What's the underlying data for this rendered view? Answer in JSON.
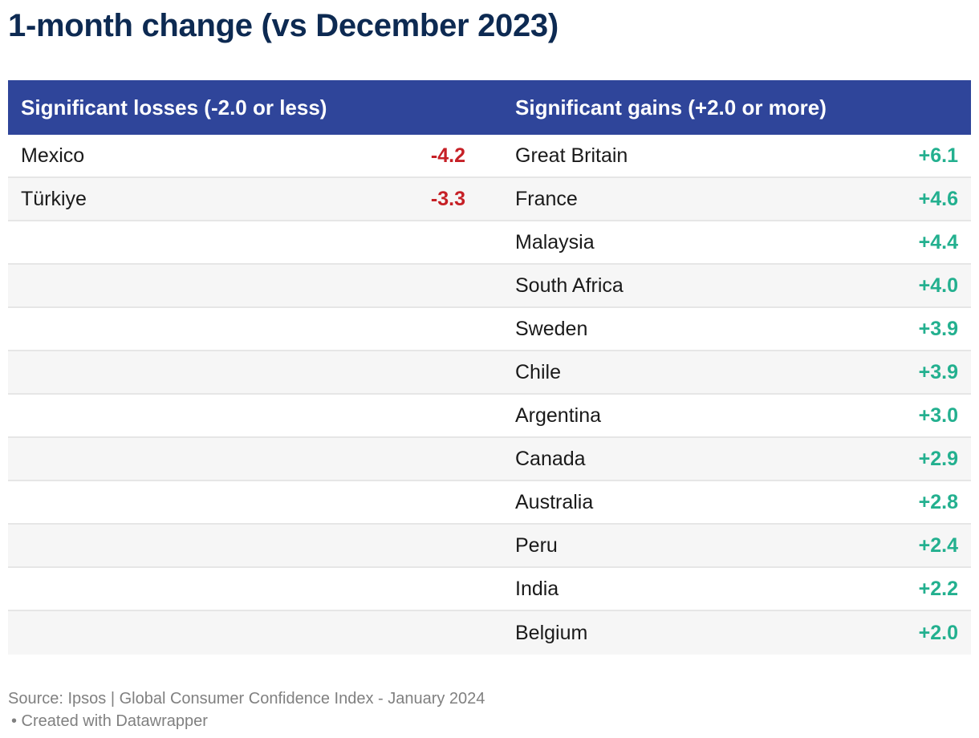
{
  "title": "1-month change (vs December 2023)",
  "chart_data": {
    "type": "table",
    "columns": [
      "Significant losses (-2.0 or less)",
      "Significant gains (+2.0 or more)"
    ],
    "losses": [
      {
        "country": "Mexico",
        "value": "-4.2"
      },
      {
        "country": "Türkiye",
        "value": "-3.3"
      }
    ],
    "gains": [
      {
        "country": "Great Britain",
        "value": "+6.1"
      },
      {
        "country": "France",
        "value": "+4.6"
      },
      {
        "country": "Malaysia",
        "value": "+4.4"
      },
      {
        "country": "South Africa",
        "value": "+4.0"
      },
      {
        "country": "Sweden",
        "value": "+3.9"
      },
      {
        "country": "Chile",
        "value": "+3.9"
      },
      {
        "country": "Argentina",
        "value": "+3.0"
      },
      {
        "country": "Canada",
        "value": "+2.9"
      },
      {
        "country": "Australia",
        "value": "+2.8"
      },
      {
        "country": "Peru",
        "value": "+2.4"
      },
      {
        "country": "India",
        "value": "+2.2"
      },
      {
        "country": "Belgium",
        "value": "+2.0"
      }
    ]
  },
  "colors": {
    "title": "#0d2a52",
    "header_bg": "#2f459a",
    "loss": "#c62026",
    "gain": "#23b08f",
    "row_alt": "#f6f6f6"
  },
  "footer": {
    "source": "Source: Ipsos | Global Consumer Confidence Index - January 2024",
    "credit": "• Created with Datawrapper"
  }
}
